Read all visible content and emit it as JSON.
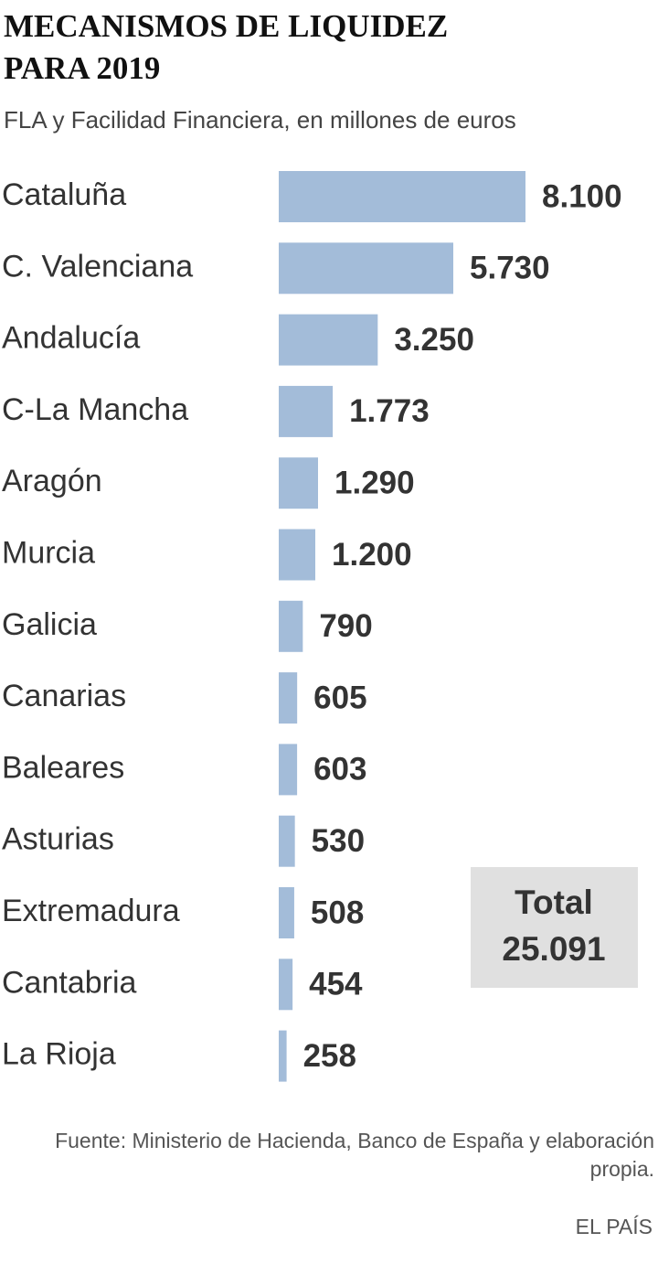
{
  "chart_data": {
    "type": "barh",
    "title": "MECANISMOS DE LIQUIDEZ PARA 2019",
    "subtitle": "FLA y Facilidad Financiera, en millones de euros",
    "categories": [
      "Cataluña",
      "C. Valenciana",
      "Andalucía",
      "C-La Mancha",
      "Aragón",
      "Murcia",
      "Galicia",
      "Canarias",
      "Baleares",
      "Asturias",
      "Extremadura",
      "Cantabria",
      "La Rioja"
    ],
    "values": [
      8100,
      5730,
      3250,
      1773,
      1290,
      1200,
      790,
      605,
      603,
      530,
      508,
      454,
      258
    ],
    "value_labels": [
      "8.100",
      "5.730",
      "3.250",
      "1.773",
      "1.290",
      "1.200",
      "790",
      "605",
      "603",
      "530",
      "508",
      "454",
      "258"
    ],
    "color": "#a3bcd9",
    "annotation": {
      "title": "Total",
      "text": "25.091"
    },
    "source": "Fuente: Ministerio de Hacienda, Banco de España y elaboración propia.",
    "brand": "EL PAÍS"
  }
}
